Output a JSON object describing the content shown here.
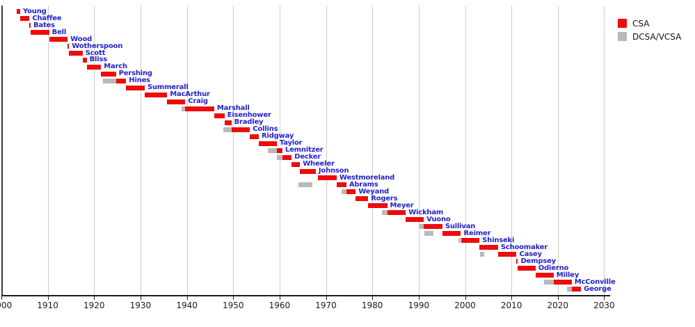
{
  "chart_data": {
    "type": "bar",
    "subtype": "gantt-timeline",
    "description": "Timeline of tenures; red bars = CSA terms, gray bars = DCSA/VCSA terms, one row per person, x-axis in years",
    "axis": {
      "unit": "year",
      "min": 1900,
      "max": 2030,
      "tick_interval": 10,
      "ticks": [
        "1900",
        "1910",
        "1920",
        "1930",
        "1940",
        "1950",
        "1960",
        "1970",
        "1980",
        "1990",
        "2000",
        "2010",
        "2020",
        "2030"
      ],
      "grid": true,
      "axis_line_end": 2031.3
    },
    "legend": {
      "position": "top-right",
      "items": [
        {
          "label": "CSA",
          "color": "#ee0b0b"
        },
        {
          "label": "DCSA/VCSA",
          "color": "#b9b9b9"
        }
      ]
    },
    "colors": {
      "csa_bar": "#ee0b0b",
      "vcsa_bar": "#b9b9b9",
      "name_label": "#2222cc",
      "gridline": "#cccccc",
      "axis": "#1a1a1a"
    },
    "rows": [
      {
        "name": "Young",
        "csa": [
          1903.3,
          1904.05
        ],
        "vcsa": null
      },
      {
        "name": "Chaffee",
        "csa": [
          1904.05,
          1906.05
        ],
        "vcsa": null
      },
      {
        "name": "Bates",
        "csa": [
          1906.05,
          1906.3
        ],
        "vcsa": null
      },
      {
        "name": "Bell",
        "csa": [
          1906.3,
          1910.3
        ],
        "vcsa": null
      },
      {
        "name": "Wood",
        "csa": [
          1910.3,
          1914.3
        ],
        "vcsa": null
      },
      {
        "name": "Wotherspoon",
        "csa": [
          1914.3,
          1914.6
        ],
        "vcsa": null
      },
      {
        "name": "Scott",
        "csa": [
          1914.6,
          1917.5
        ],
        "vcsa": null
      },
      {
        "name": "Bliss",
        "csa": [
          1917.5,
          1918.4
        ],
        "vcsa": null
      },
      {
        "name": "March",
        "csa": [
          1918.4,
          1921.5
        ],
        "vcsa": null
      },
      {
        "name": "Pershing",
        "csa": [
          1921.5,
          1924.7
        ],
        "vcsa": null
      },
      {
        "name": "Hines",
        "csa": [
          1924.7,
          1926.9
        ],
        "vcsa": [
          1921.95,
          1924.7
        ]
      },
      {
        "name": "Summerall",
        "csa": [
          1926.9,
          1930.9
        ],
        "vcsa": null
      },
      {
        "name": "MacArthur",
        "csa": [
          1930.9,
          1935.75
        ],
        "vcsa": null
      },
      {
        "name": "Craig",
        "csa": [
          1935.75,
          1939.65
        ],
        "vcsa": null
      },
      {
        "name": "Marshall",
        "csa": [
          1939.65,
          1945.9
        ],
        "vcsa": [
          1938.8,
          1939.65
        ]
      },
      {
        "name": "Eisenhower",
        "csa": [
          1945.9,
          1948.1
        ],
        "vcsa": null
      },
      {
        "name": "Bradley",
        "csa": [
          1948.1,
          1949.6
        ],
        "vcsa": null
      },
      {
        "name": "Collins",
        "csa": [
          1949.6,
          1953.6
        ],
        "vcsa": [
          1947.85,
          1949.6
        ]
      },
      {
        "name": "Ridgway",
        "csa": [
          1953.6,
          1955.5
        ],
        "vcsa": null
      },
      {
        "name": "Taylor",
        "csa": [
          1955.5,
          1959.4
        ],
        "vcsa": null
      },
      {
        "name": "Lemnitzer",
        "csa": [
          1959.4,
          1960.6
        ],
        "vcsa": [
          1957.4,
          1959.4
        ]
      },
      {
        "name": "Decker",
        "csa": [
          1960.6,
          1962.6
        ],
        "vcsa": [
          1959.4,
          1960.6
        ]
      },
      {
        "name": "Wheeler",
        "csa": [
          1962.6,
          1964.4
        ],
        "vcsa": null
      },
      {
        "name": "Johnson",
        "csa": [
          1964.4,
          1967.8
        ],
        "vcsa": null
      },
      {
        "name": "Westmoreland",
        "csa": [
          1968.2,
          1972.3
        ],
        "vcsa": null
      },
      {
        "name": "Abrams",
        "csa": [
          1972.3,
          1974.4
        ],
        "vcsa": [
          1964.0,
          1967.0
        ]
      },
      {
        "name": "Weyand",
        "csa": [
          1974.4,
          1976.4
        ],
        "vcsa": [
          1973.3,
          1974.4
        ]
      },
      {
        "name": "Rogers",
        "csa": [
          1976.4,
          1979.1
        ],
        "vcsa": null
      },
      {
        "name": "Meyer",
        "csa": [
          1979.1,
          1983.2
        ],
        "vcsa": null
      },
      {
        "name": "Wickham",
        "csa": [
          1983.2,
          1987.2
        ],
        "vcsa": [
          1982.1,
          1983.2
        ]
      },
      {
        "name": "Vuono",
        "csa": [
          1987.2,
          1991.1
        ],
        "vcsa": null
      },
      {
        "name": "Sullivan",
        "csa": [
          1991.1,
          1995.1
        ],
        "vcsa": [
          1990.2,
          1991.1
        ]
      },
      {
        "name": "Reimer",
        "csa": [
          1995.1,
          1999.1
        ],
        "vcsa": [
          1991.2,
          1993.2
        ]
      },
      {
        "name": "Shinseki",
        "csa": [
          1999.1,
          2003.1
        ],
        "vcsa": [
          1998.5,
          1999.1
        ]
      },
      {
        "name": "Schoomaker",
        "csa": [
          2003.1,
          2007.1
        ],
        "vcsa": null
      },
      {
        "name": "Casey",
        "csa": [
          2007.1,
          2011.1
        ],
        "vcsa": [
          2003.2,
          2004.2
        ]
      },
      {
        "name": "Dempsey",
        "csa": [
          2011.1,
          2011.4
        ],
        "vcsa": null
      },
      {
        "name": "Odierno",
        "csa": [
          2011.4,
          2015.2
        ],
        "vcsa": null
      },
      {
        "name": "Milley",
        "csa": [
          2015.2,
          2019.1
        ],
        "vcsa": null
      },
      {
        "name": "McConville",
        "csa": [
          2019.1,
          2023.0
        ],
        "vcsa": [
          2017.0,
          2019.1
        ]
      },
      {
        "name": "George",
        "csa": [
          2023.0,
          2025.0
        ],
        "vcsa": [
          2022.0,
          2023.0
        ]
      }
    ]
  }
}
